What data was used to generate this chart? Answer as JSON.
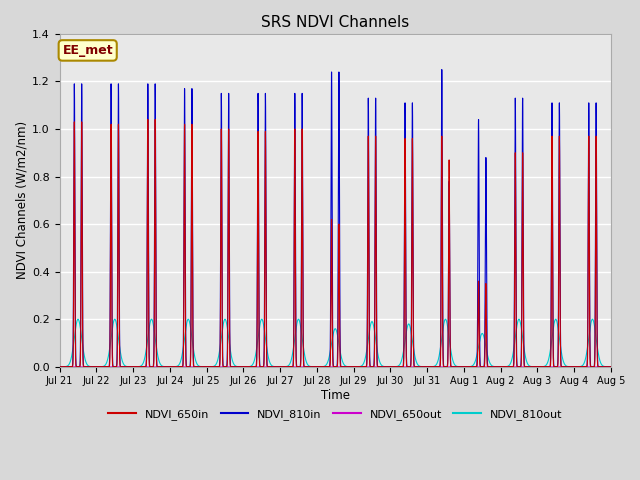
{
  "title": "SRS NDVI Channels",
  "xlabel": "Time",
  "ylabel": "NDVI Channels (W/m2/nm)",
  "ylim": [
    0.0,
    1.4
  ],
  "yticks": [
    0.0,
    0.2,
    0.4,
    0.6,
    0.8,
    1.0,
    1.2,
    1.4
  ],
  "x_tick_labels": [
    "Jul 21",
    "Jul 22",
    "Jul 23",
    "Jul 24",
    "Jul 25",
    "Jul 26",
    "Jul 27",
    "Jul 28",
    "Jul 29",
    "Jul 30",
    "Jul 31",
    "Aug 1",
    "Aug 2",
    "Aug 3",
    "Aug 4",
    "Aug 5"
  ],
  "colors": {
    "NDVI_650in": "#cc0000",
    "NDVI_810in": "#0000cc",
    "NDVI_650out": "#cc00cc",
    "NDVI_810out": "#00cccc"
  },
  "background_color": "#d8d8d8",
  "plot_bg_color": "#e8e8e8",
  "annotation_text": "EE_met",
  "annotation_color": "#800000",
  "annotation_bg": "#ffffcc",
  "grid_color": "#cccccc",
  "peak_810in": [
    1.19,
    1.19,
    1.19,
    1.17,
    1.15,
    1.15,
    1.15,
    1.24,
    1.13,
    1.11,
    1.25,
    1.04,
    1.13,
    1.11,
    1.11
  ],
  "peak_650in": [
    1.03,
    1.02,
    1.04,
    1.02,
    1.0,
    0.99,
    1.0,
    0.62,
    0.97,
    0.96,
    0.97,
    0.36,
    0.9,
    0.97,
    0.97
  ],
  "peak_810out": [
    0.2,
    0.2,
    0.2,
    0.2,
    0.2,
    0.2,
    0.2,
    0.16,
    0.19,
    0.18,
    0.2,
    0.14,
    0.2,
    0.2,
    0.2
  ],
  "peak_650out": [
    0.005,
    0.005,
    0.005,
    0.005,
    0.005,
    0.005,
    0.005,
    0.005,
    0.005,
    0.005,
    0.005,
    0.005,
    0.005,
    0.005,
    0.005
  ],
  "peak2_810in": [
    1.19,
    1.19,
    1.19,
    1.17,
    1.15,
    1.15,
    1.15,
    1.24,
    1.13,
    1.11,
    0.78,
    0.88,
    1.13,
    1.11,
    1.11
  ],
  "peak2_650in": [
    1.03,
    1.02,
    1.04,
    1.02,
    1.0,
    0.99,
    1.0,
    0.6,
    0.97,
    0.96,
    0.87,
    0.35,
    0.9,
    0.97,
    0.97
  ],
  "peak2_810out": [
    0.2,
    0.2,
    0.2,
    0.2,
    0.2,
    0.2,
    0.2,
    0.16,
    0.19,
    0.18,
    0.16,
    0.1,
    0.2,
    0.2,
    0.2
  ]
}
